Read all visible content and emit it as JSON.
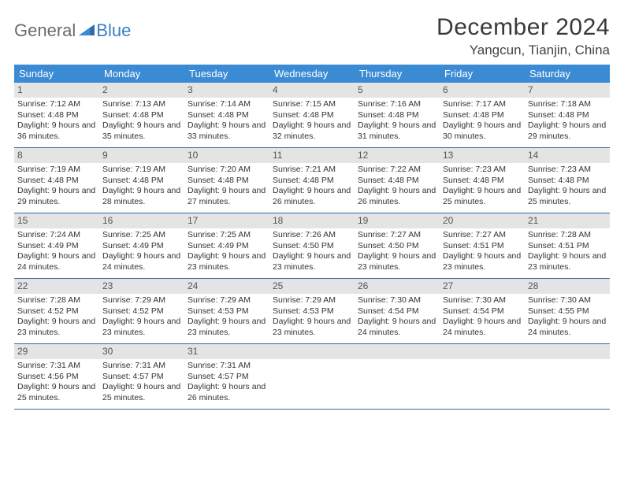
{
  "logo": {
    "word1": "General",
    "word2": "Blue"
  },
  "title": "December 2024",
  "location": "Yangcun, Tianjin, China",
  "weekday_header_bg": "#3b8bd4",
  "weekday_header_fg": "#ffffff",
  "daynum_bg": "#e4e4e4",
  "week_border": "#2f6ca8",
  "weekdays": [
    "Sunday",
    "Monday",
    "Tuesday",
    "Wednesday",
    "Thursday",
    "Friday",
    "Saturday"
  ],
  "weeks": [
    [
      {
        "n": "1",
        "sr": "7:12 AM",
        "ss": "4:48 PM",
        "dl": "9 hours and 36 minutes."
      },
      {
        "n": "2",
        "sr": "7:13 AM",
        "ss": "4:48 PM",
        "dl": "9 hours and 35 minutes."
      },
      {
        "n": "3",
        "sr": "7:14 AM",
        "ss": "4:48 PM",
        "dl": "9 hours and 33 minutes."
      },
      {
        "n": "4",
        "sr": "7:15 AM",
        "ss": "4:48 PM",
        "dl": "9 hours and 32 minutes."
      },
      {
        "n": "5",
        "sr": "7:16 AM",
        "ss": "4:48 PM",
        "dl": "9 hours and 31 minutes."
      },
      {
        "n": "6",
        "sr": "7:17 AM",
        "ss": "4:48 PM",
        "dl": "9 hours and 30 minutes."
      },
      {
        "n": "7",
        "sr": "7:18 AM",
        "ss": "4:48 PM",
        "dl": "9 hours and 29 minutes."
      }
    ],
    [
      {
        "n": "8",
        "sr": "7:19 AM",
        "ss": "4:48 PM",
        "dl": "9 hours and 29 minutes."
      },
      {
        "n": "9",
        "sr": "7:19 AM",
        "ss": "4:48 PM",
        "dl": "9 hours and 28 minutes."
      },
      {
        "n": "10",
        "sr": "7:20 AM",
        "ss": "4:48 PM",
        "dl": "9 hours and 27 minutes."
      },
      {
        "n": "11",
        "sr": "7:21 AM",
        "ss": "4:48 PM",
        "dl": "9 hours and 26 minutes."
      },
      {
        "n": "12",
        "sr": "7:22 AM",
        "ss": "4:48 PM",
        "dl": "9 hours and 26 minutes."
      },
      {
        "n": "13",
        "sr": "7:23 AM",
        "ss": "4:48 PM",
        "dl": "9 hours and 25 minutes."
      },
      {
        "n": "14",
        "sr": "7:23 AM",
        "ss": "4:48 PM",
        "dl": "9 hours and 25 minutes."
      }
    ],
    [
      {
        "n": "15",
        "sr": "7:24 AM",
        "ss": "4:49 PM",
        "dl": "9 hours and 24 minutes."
      },
      {
        "n": "16",
        "sr": "7:25 AM",
        "ss": "4:49 PM",
        "dl": "9 hours and 24 minutes."
      },
      {
        "n": "17",
        "sr": "7:25 AM",
        "ss": "4:49 PM",
        "dl": "9 hours and 23 minutes."
      },
      {
        "n": "18",
        "sr": "7:26 AM",
        "ss": "4:50 PM",
        "dl": "9 hours and 23 minutes."
      },
      {
        "n": "19",
        "sr": "7:27 AM",
        "ss": "4:50 PM",
        "dl": "9 hours and 23 minutes."
      },
      {
        "n": "20",
        "sr": "7:27 AM",
        "ss": "4:51 PM",
        "dl": "9 hours and 23 minutes."
      },
      {
        "n": "21",
        "sr": "7:28 AM",
        "ss": "4:51 PM",
        "dl": "9 hours and 23 minutes."
      }
    ],
    [
      {
        "n": "22",
        "sr": "7:28 AM",
        "ss": "4:52 PM",
        "dl": "9 hours and 23 minutes."
      },
      {
        "n": "23",
        "sr": "7:29 AM",
        "ss": "4:52 PM",
        "dl": "9 hours and 23 minutes."
      },
      {
        "n": "24",
        "sr": "7:29 AM",
        "ss": "4:53 PM",
        "dl": "9 hours and 23 minutes."
      },
      {
        "n": "25",
        "sr": "7:29 AM",
        "ss": "4:53 PM",
        "dl": "9 hours and 23 minutes."
      },
      {
        "n": "26",
        "sr": "7:30 AM",
        "ss": "4:54 PM",
        "dl": "9 hours and 24 minutes."
      },
      {
        "n": "27",
        "sr": "7:30 AM",
        "ss": "4:54 PM",
        "dl": "9 hours and 24 minutes."
      },
      {
        "n": "28",
        "sr": "7:30 AM",
        "ss": "4:55 PM",
        "dl": "9 hours and 24 minutes."
      }
    ],
    [
      {
        "n": "29",
        "sr": "7:31 AM",
        "ss": "4:56 PM",
        "dl": "9 hours and 25 minutes."
      },
      {
        "n": "30",
        "sr": "7:31 AM",
        "ss": "4:57 PM",
        "dl": "9 hours and 25 minutes."
      },
      {
        "n": "31",
        "sr": "7:31 AM",
        "ss": "4:57 PM",
        "dl": "9 hours and 26 minutes."
      },
      {
        "empty": true
      },
      {
        "empty": true
      },
      {
        "empty": true
      },
      {
        "empty": true
      }
    ]
  ],
  "labels": {
    "sunrise": "Sunrise: ",
    "sunset": "Sunset: ",
    "daylight": "Daylight: "
  }
}
